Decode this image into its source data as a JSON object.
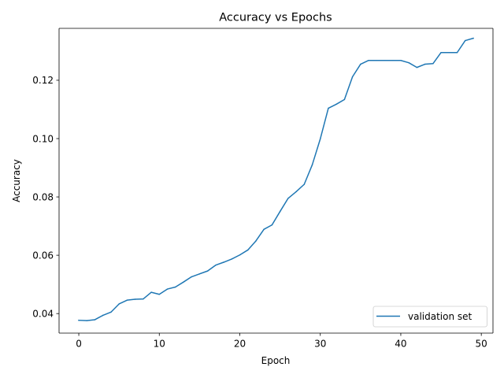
{
  "chart_data": {
    "type": "line",
    "title": "Accuracy vs Epochs",
    "xlabel": "Epoch",
    "ylabel": "Accuracy",
    "xlim": [
      -2.45,
      51.45
    ],
    "ylim": [
      0.0333,
      0.1378
    ],
    "xticks": [
      0,
      10,
      20,
      30,
      40,
      50
    ],
    "yticks": [
      0.04,
      0.06,
      0.08,
      0.1,
      0.12
    ],
    "xtick_labels": [
      "0",
      "10",
      "20",
      "30",
      "40",
      "50"
    ],
    "ytick_labels": [
      "0.04",
      "0.06",
      "0.08",
      "0.10",
      "0.12"
    ],
    "grid": false,
    "legend_position": "lower-right",
    "series": [
      {
        "name": "validation set",
        "color": "#1f77b4",
        "x": [
          0,
          1,
          2,
          3,
          4,
          5,
          6,
          7,
          8,
          9,
          10,
          11,
          12,
          13,
          14,
          15,
          16,
          17,
          18,
          19,
          20,
          21,
          22,
          23,
          24,
          25,
          26,
          27,
          28,
          29,
          30,
          31,
          32,
          33,
          34,
          35,
          36,
          37,
          38,
          39,
          40,
          41,
          42,
          43,
          44,
          45,
          46,
          47,
          48,
          49
        ],
        "values": [
          0.0377,
          0.0376,
          0.0379,
          0.0394,
          0.0405,
          0.0433,
          0.0446,
          0.0449,
          0.045,
          0.0473,
          0.0466,
          0.0484,
          0.0491,
          0.0508,
          0.0526,
          0.0536,
          0.0546,
          0.0566,
          0.0576,
          0.0587,
          0.0601,
          0.0618,
          0.0649,
          0.0689,
          0.0704,
          0.075,
          0.0795,
          0.0818,
          0.0843,
          0.091,
          0.0999,
          0.1104,
          0.1118,
          0.1134,
          0.1212,
          0.1255,
          0.1268,
          0.1268,
          0.1268,
          0.1268,
          0.1268,
          0.126,
          0.1244,
          0.1255,
          0.1257,
          0.1295,
          0.1295,
          0.1295,
          0.1336,
          0.1344
        ]
      }
    ]
  }
}
